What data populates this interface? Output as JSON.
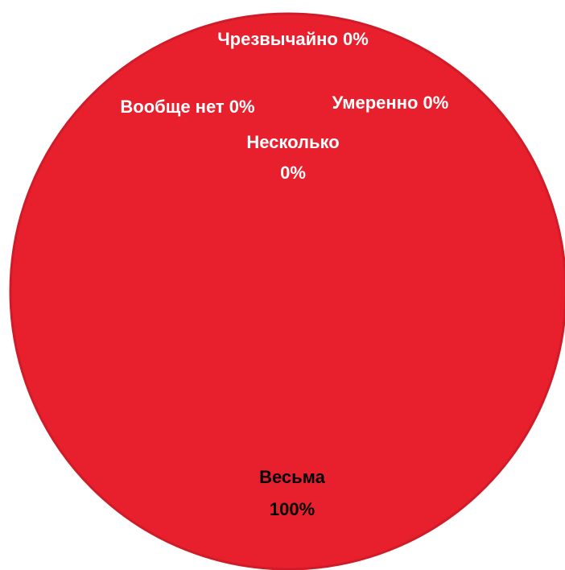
{
  "chart_data": {
    "type": "pie",
    "categories": [
      "Вообще нет",
      "Несколько",
      "Умеренно",
      "Весьма",
      "Чрезвычайно"
    ],
    "values": [
      0,
      0,
      0,
      100,
      0
    ],
    "legend": "none",
    "colors": {
      "slice": "#e8202e",
      "edge": "#d01c28",
      "label_light": "#ffffff",
      "label_dark": "#000000"
    }
  },
  "labels": {
    "chrezvychaino": {
      "name": "Чрезвычайно 0%"
    },
    "voobshche_net": {
      "name": "Вообще нет 0%"
    },
    "umerenno": {
      "name": "Умеренно 0%"
    },
    "neskolko": {
      "name": "Несколько",
      "value": "0%"
    },
    "vesma": {
      "name": "Весьма",
      "value": "100%"
    }
  }
}
